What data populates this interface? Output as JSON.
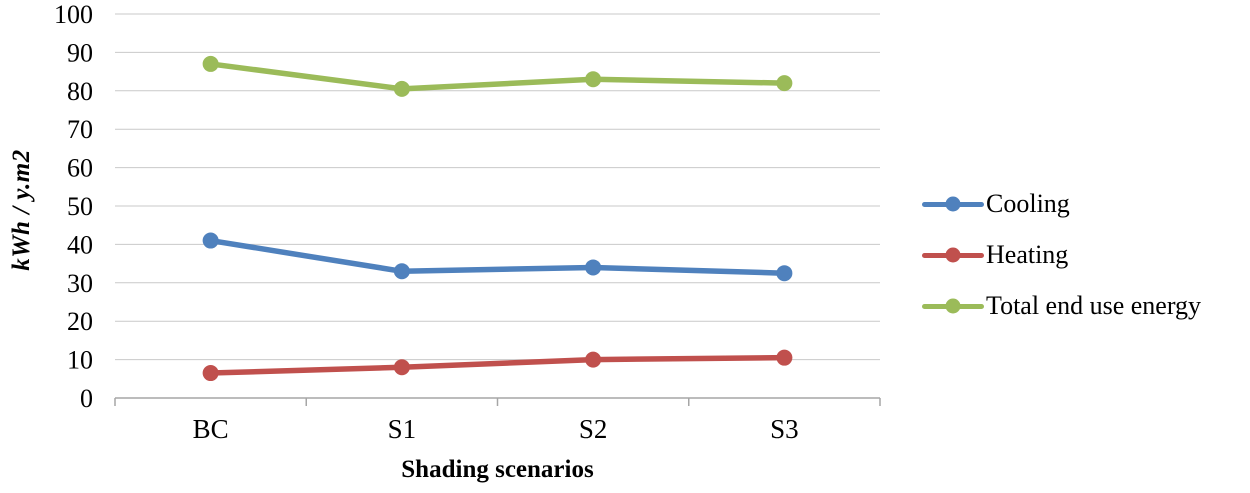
{
  "chart_data": {
    "type": "line",
    "categories": [
      "BC",
      "S1",
      "S2",
      "S3"
    ],
    "series": [
      {
        "name": "Cooling",
        "color": "#4F81BD",
        "values": [
          41,
          33,
          34,
          32.5
        ]
      },
      {
        "name": "Heating",
        "color": "#C0504D",
        "values": [
          6.5,
          8,
          10,
          10.5
        ]
      },
      {
        "name": "Total end use energy",
        "color": "#9BBB59",
        "values": [
          87,
          80.5,
          83,
          82
        ]
      }
    ],
    "title": "",
    "xlabel": "Shading scenarios",
    "ylabel": "kWh / y.m2",
    "ylim": [
      0,
      100
    ],
    "ytick_step": 10,
    "grid": "horizontal",
    "legend_position": "right",
    "grid_color": "#C9C9C9",
    "axis_color": "#A6A6A6"
  }
}
